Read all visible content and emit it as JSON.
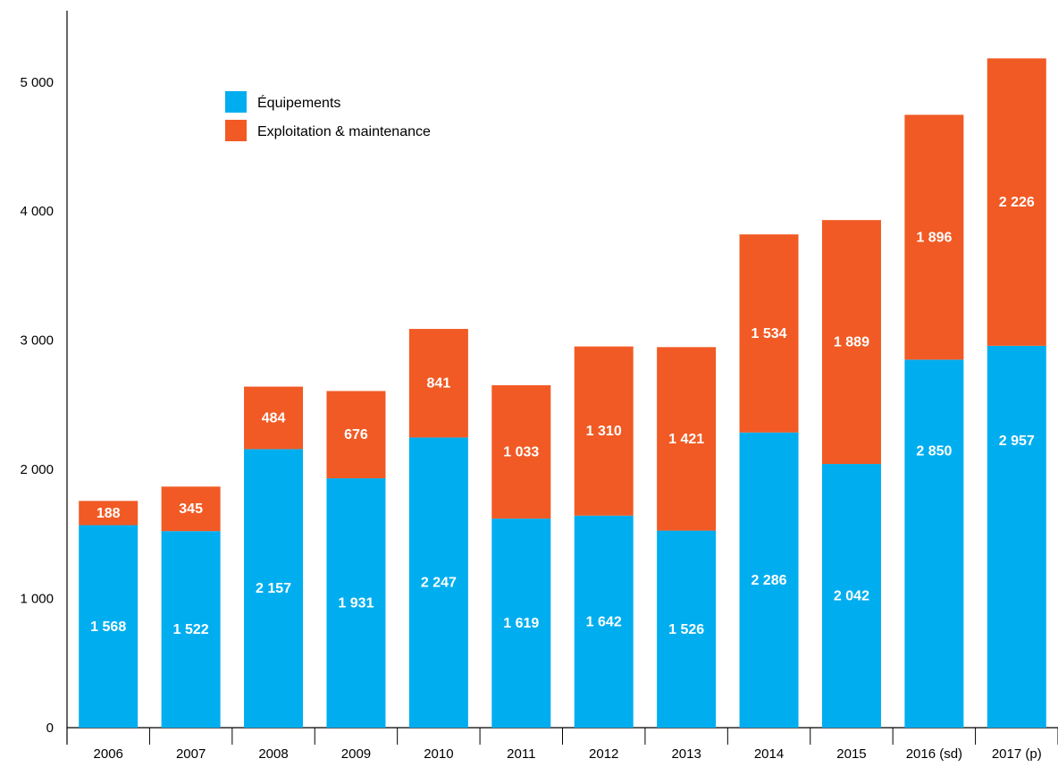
{
  "chart_data": {
    "type": "bar",
    "stacked": true,
    "categories": [
      "2006",
      "2007",
      "2008",
      "2009",
      "2010",
      "2011",
      "2012",
      "2013",
      "2014",
      "2015",
      "2016 (sd)",
      "2017 (p)"
    ],
    "series": [
      {
        "name": "Équipements",
        "color": "#00aeef",
        "values": [
          1568,
          1522,
          2157,
          1931,
          2247,
          1619,
          1642,
          1526,
          2286,
          2042,
          2850,
          2957
        ],
        "labels": [
          "1 568",
          "1 522",
          "2 157",
          "1 931",
          "2 247",
          "1 619",
          "1 642",
          "1 526",
          "2 286",
          "2 042",
          "2 850",
          "2 957"
        ]
      },
      {
        "name": "Exploitation & maintenance",
        "color": "#f15a24",
        "values": [
          188,
          345,
          484,
          676,
          841,
          1033,
          1310,
          1421,
          1534,
          1889,
          1896,
          2226
        ],
        "labels": [
          "188",
          "345",
          "484",
          "676",
          "841",
          "1 033",
          "1 310",
          "1 421",
          "1 534",
          "1 889",
          "1 896",
          "2 226"
        ]
      }
    ],
    "yticks": [
      0,
      1000,
      2000,
      3000,
      4000,
      5000
    ],
    "ytick_labels": [
      "0",
      "1 000",
      "2 000",
      "3 000",
      "4 000",
      "5 000"
    ],
    "ylim": [
      0,
      5600
    ],
    "legend_position": "top-left",
    "grid": false,
    "title": "",
    "xlabel": "",
    "ylabel": ""
  }
}
